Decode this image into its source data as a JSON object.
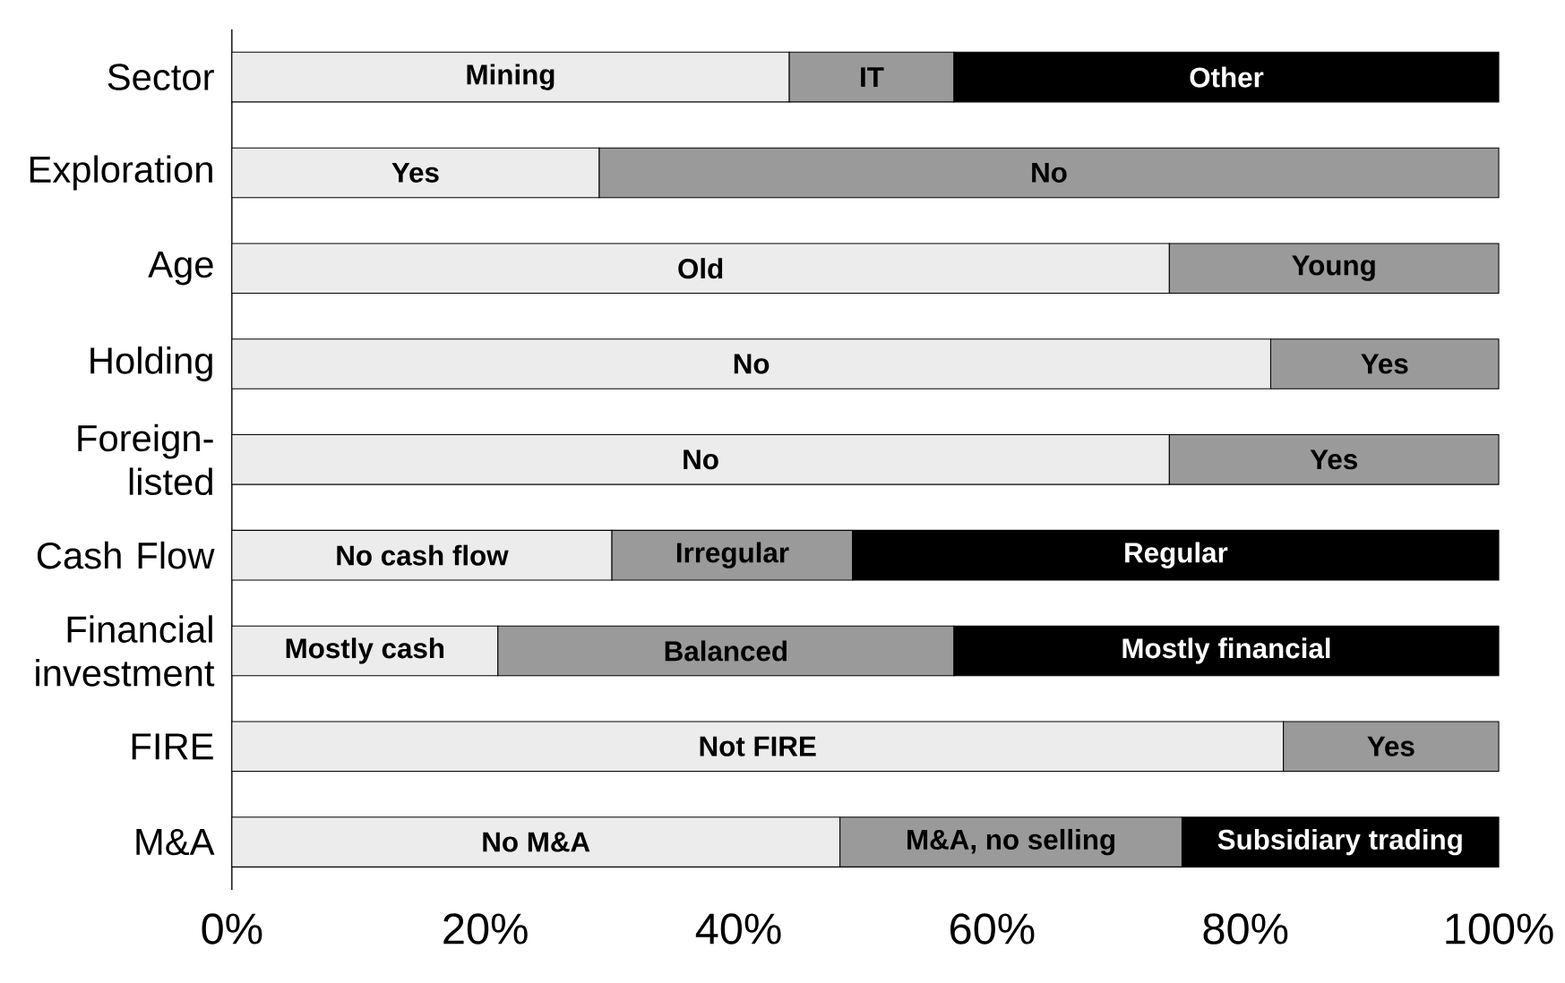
{
  "chart_data": {
    "type": "bar",
    "orientation": "horizontal",
    "stacked": true,
    "categories": [
      "Sector",
      "Exploration",
      "Age",
      "Holding",
      "Foreign-listed",
      "Cash Flow",
      "Financial investment",
      "FIRE",
      "M&A"
    ],
    "series": [
      {
        "color": "#ececec",
        "values": [
          44,
          29,
          74,
          82,
          74,
          30,
          21,
          83,
          48
        ],
        "value_labels": [
          "Mining",
          "Yes",
          "Old",
          "No",
          "No",
          "No cash flow",
          "Mostly cash",
          "Not FIRE",
          "No M&A"
        ]
      },
      {
        "color": "#9a9a9a",
        "values": [
          13,
          71,
          26,
          18,
          26,
          19,
          36,
          17,
          27
        ],
        "value_labels": [
          "IT",
          "No",
          "Young",
          "Yes",
          "Yes",
          "Irregular",
          "Balanced",
          "Yes",
          "M&A, no selling"
        ]
      },
      {
        "color": "#000000",
        "values": [
          43,
          null,
          null,
          null,
          null,
          51,
          43,
          null,
          25
        ],
        "value_labels": [
          "Other",
          null,
          null,
          null,
          null,
          "Regular",
          "Mostly financial",
          null,
          "Subsidiary trading"
        ]
      }
    ],
    "xlim": [
      0,
      100
    ],
    "xticks": [
      {
        "value": 0,
        "label": "0%"
      },
      {
        "value": 20,
        "label": "20%"
      },
      {
        "value": 40,
        "label": "40%"
      },
      {
        "value": 60,
        "label": "60%"
      },
      {
        "value": 80,
        "label": "80%"
      },
      {
        "value": 100,
        "label": "100%"
      }
    ],
    "grid": false
  }
}
